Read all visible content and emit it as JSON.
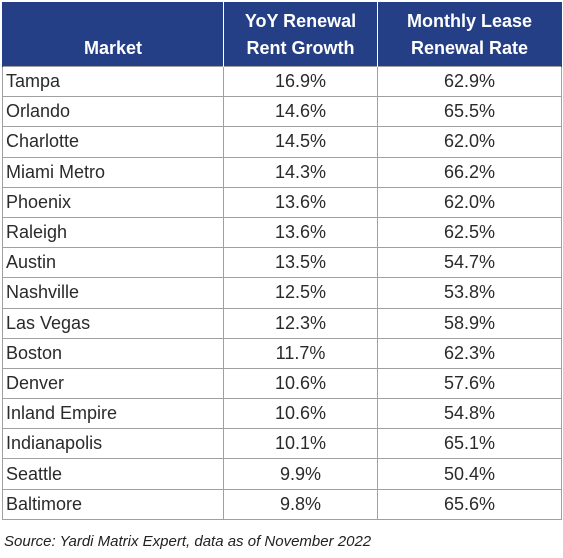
{
  "table": {
    "headers": {
      "market": "Market",
      "rent_growth_line1": "YoY Renewal",
      "rent_growth_line2": "Rent Growth",
      "renewal_rate_line1": "Monthly Lease",
      "renewal_rate_line2": "Renewal Rate"
    },
    "rows": [
      {
        "market": "Tampa",
        "rent_growth": "16.9%",
        "renewal_rate": "62.9%"
      },
      {
        "market": "Orlando",
        "rent_growth": "14.6%",
        "renewal_rate": "65.5%"
      },
      {
        "market": "Charlotte",
        "rent_growth": "14.5%",
        "renewal_rate": "62.0%"
      },
      {
        "market": "Miami Metro",
        "rent_growth": "14.3%",
        "renewal_rate": "66.2%"
      },
      {
        "market": "Phoenix",
        "rent_growth": "13.6%",
        "renewal_rate": "62.0%"
      },
      {
        "market": "Raleigh",
        "rent_growth": "13.6%",
        "renewal_rate": "62.5%"
      },
      {
        "market": "Austin",
        "rent_growth": "13.5%",
        "renewal_rate": "54.7%"
      },
      {
        "market": "Nashville",
        "rent_growth": "12.5%",
        "renewal_rate": "53.8%"
      },
      {
        "market": "Las Vegas",
        "rent_growth": "12.3%",
        "renewal_rate": "58.9%"
      },
      {
        "market": "Boston",
        "rent_growth": "11.7%",
        "renewal_rate": "62.3%"
      },
      {
        "market": "Denver",
        "rent_growth": "10.6%",
        "renewal_rate": "57.6%"
      },
      {
        "market": "Inland Empire",
        "rent_growth": "10.6%",
        "renewal_rate": "54.8%"
      },
      {
        "market": "Indianapolis",
        "rent_growth": "10.1%",
        "renewal_rate": "65.1%"
      },
      {
        "market": "Seattle",
        "rent_growth": "9.9%",
        "renewal_rate": "50.4%"
      },
      {
        "market": "Baltimore",
        "rent_growth": "9.8%",
        "renewal_rate": "65.6%"
      }
    ]
  },
  "source": "Source: Yardi Matrix Expert, data as of November 2022",
  "colors": {
    "header_bg": "#243f86",
    "header_text": "#ffffff",
    "grid_line": "#a0a0a0"
  }
}
